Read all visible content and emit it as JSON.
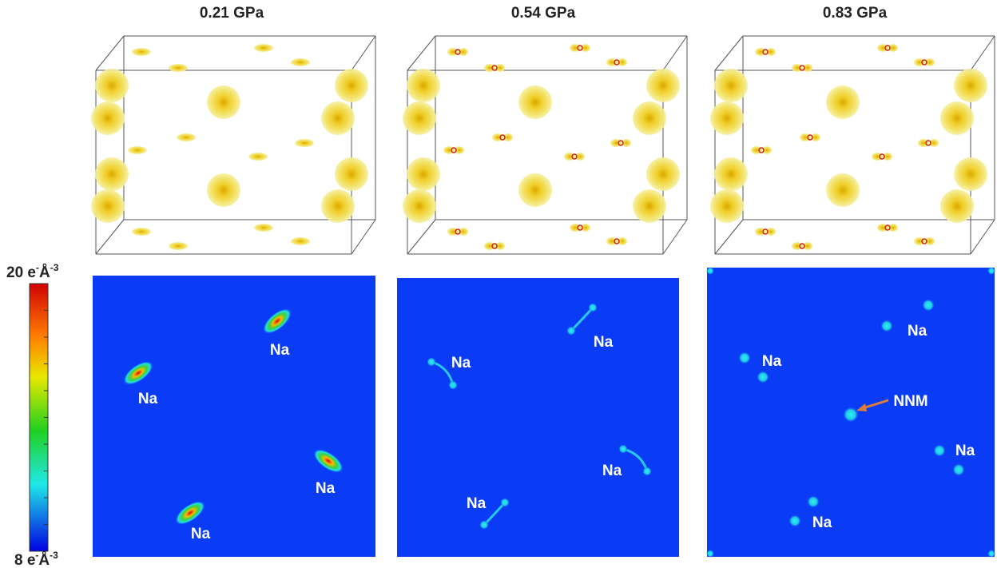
{
  "panels": [
    {
      "title": "0.21 GPa",
      "labels": [
        "Na",
        "Na",
        "Na",
        "Na"
      ]
    },
    {
      "title": "0.54 GPa",
      "labels": [
        "Na",
        "Na",
        "Na",
        "Na"
      ]
    },
    {
      "title": "0.83 GPa",
      "labels": [
        "Na",
        "Na",
        "Na",
        "Na",
        "NNM"
      ]
    }
  ],
  "colorbar": {
    "max": [
      "20 e",
      "-",
      "Å",
      "-3"
    ],
    "min": [
      "8 e",
      "-",
      "Å",
      "-3"
    ]
  }
}
